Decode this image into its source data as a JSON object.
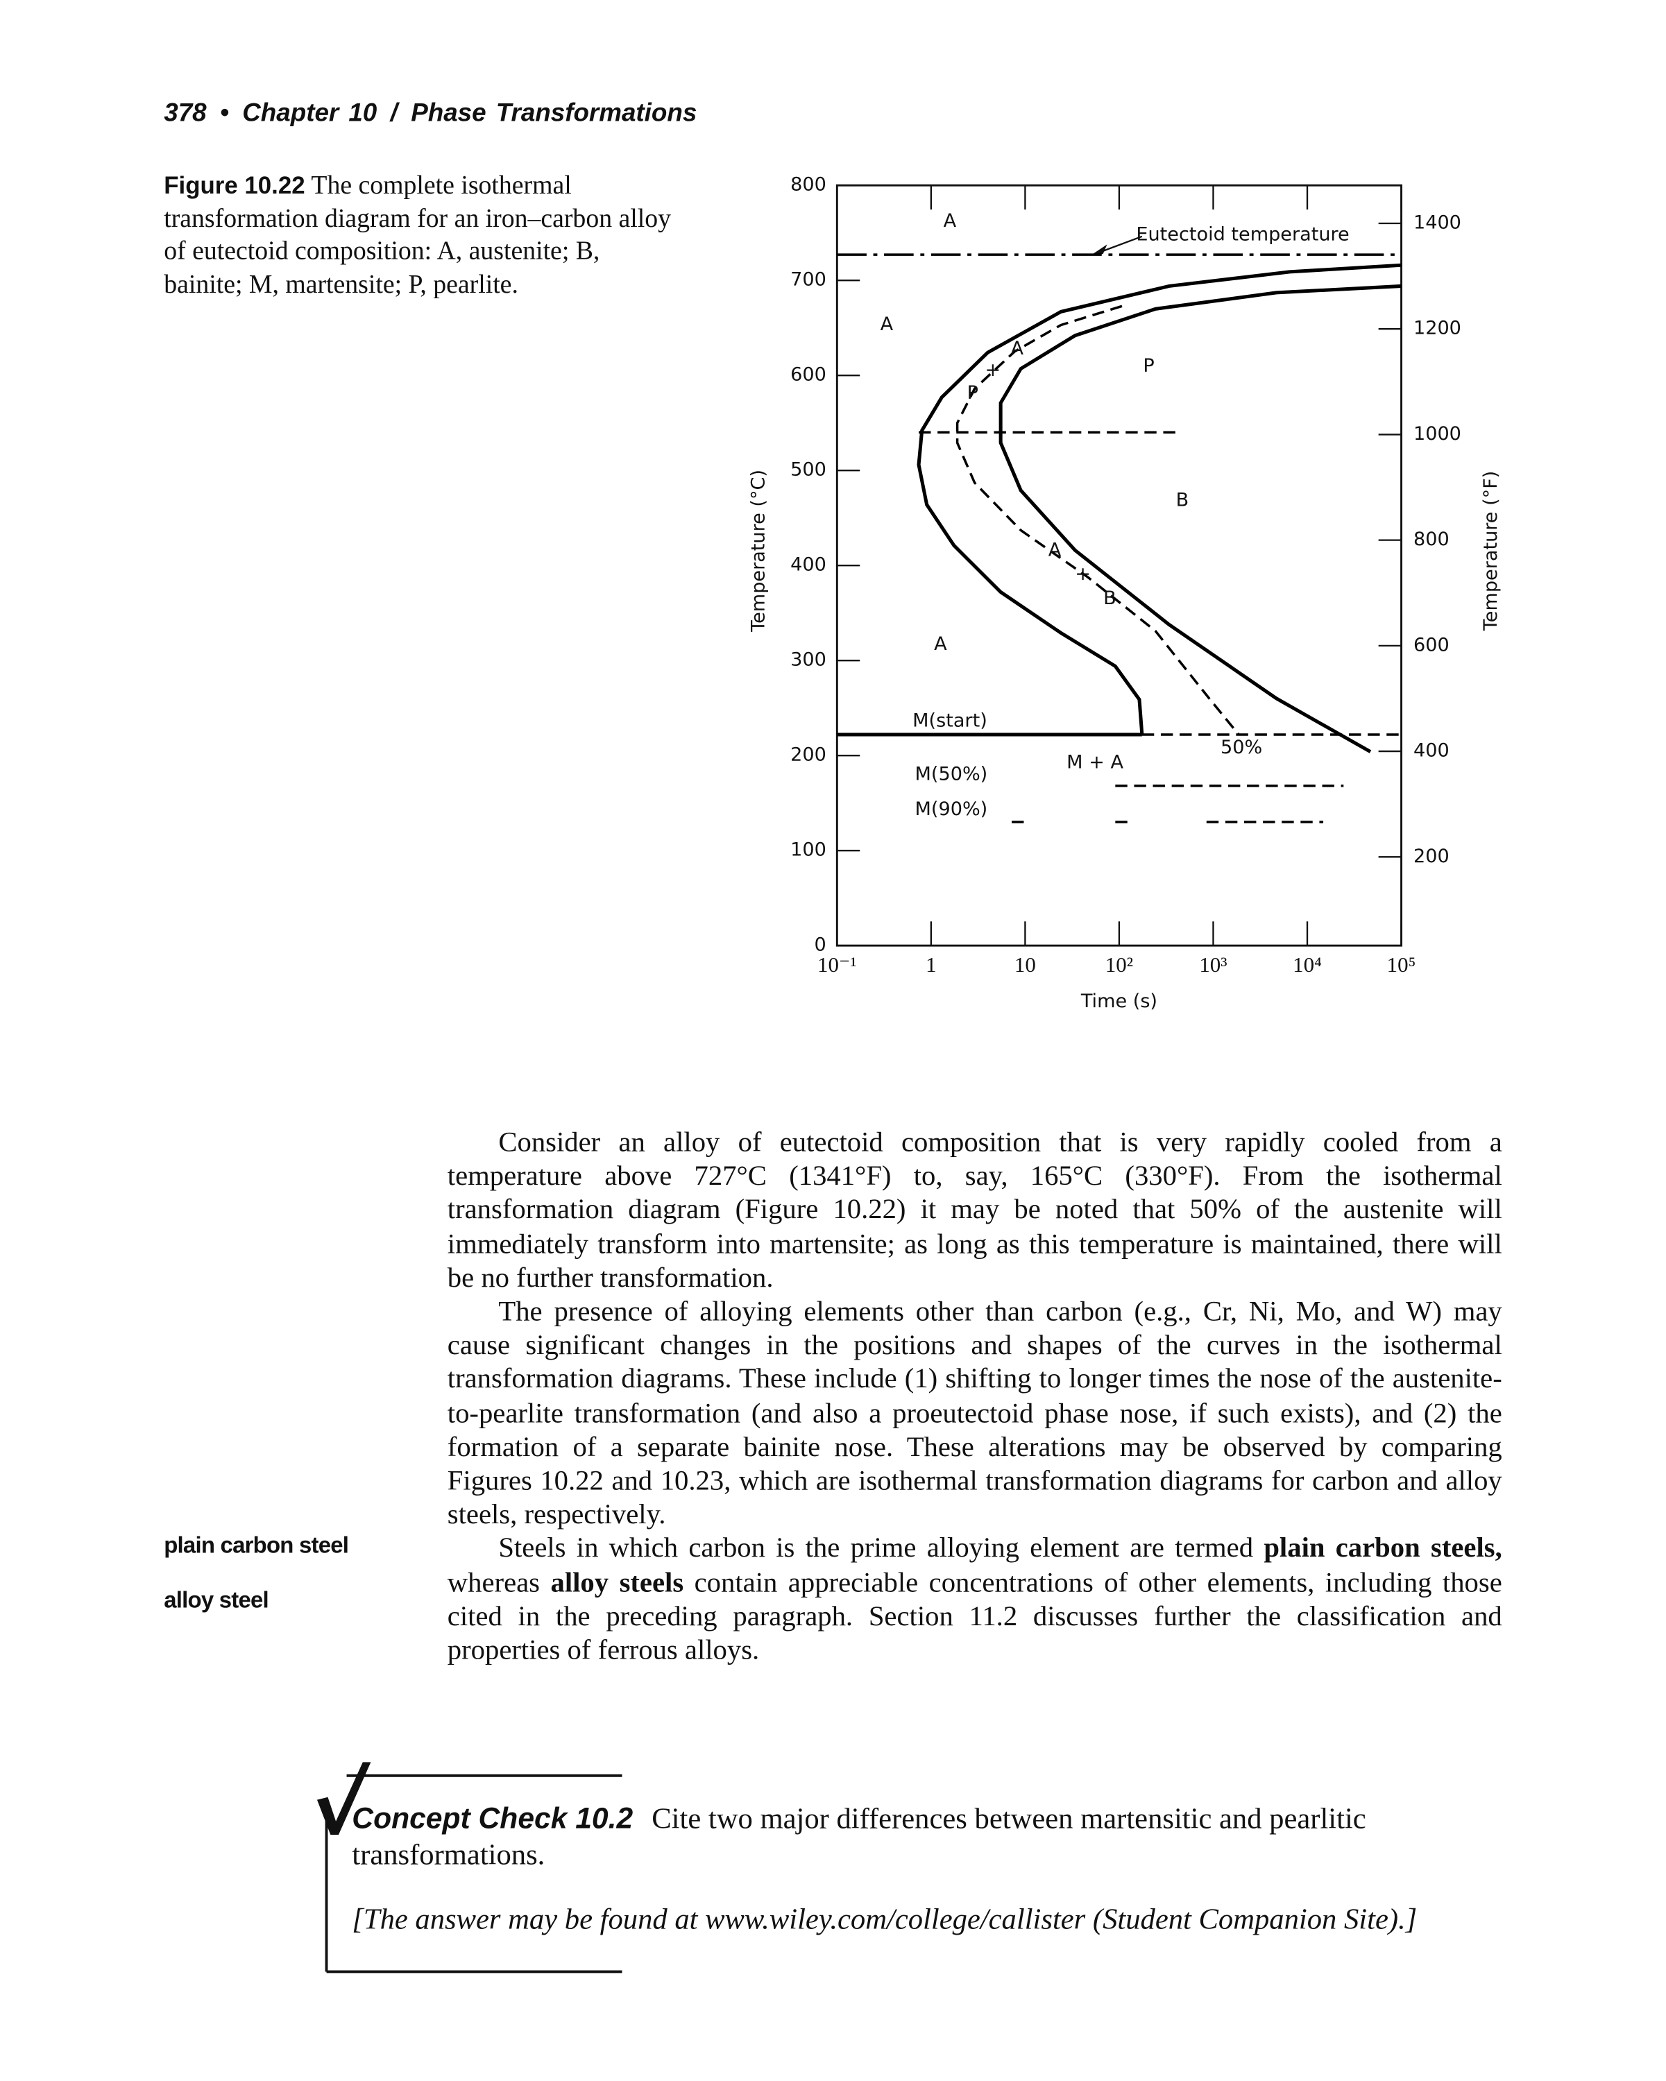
{
  "header": {
    "parts": [
      "378",
      "•",
      "Chapter 10",
      "/",
      "Phase Transformations"
    ]
  },
  "caption": {
    "label": "Figure 10.22",
    "text": "The complete isothermal transformation diagram for an iron–carbon alloy of eutectoid composition: A, austenite; B, bainite; M, martensite; P, pearlite."
  },
  "chart_data": {
    "type": "ttt",
    "x_label": "Time (s)",
    "y_label": "Temperature (°C)",
    "y2_label": "Temperature (°F)",
    "xscale": "log",
    "xlim": [
      0.1,
      100000
    ],
    "xticks": [
      {
        "value": 0.1,
        "label": "10⁻¹"
      },
      1,
      10,
      {
        "value": 100,
        "label": "10²"
      },
      {
        "value": 1000,
        "label": "10³"
      },
      {
        "value": 10000,
        "label": "10⁴"
      },
      {
        "value": 100000,
        "label": "10⁵"
      }
    ],
    "ylim": [
      0,
      800
    ],
    "yticks": [
      0,
      100,
      200,
      300,
      400,
      500,
      600,
      700,
      800
    ],
    "y2lim": [
      32,
      1472
    ],
    "y2ticks": [
      200,
      400,
      600,
      800,
      1000,
      1200,
      1400
    ],
    "series": [
      {
        "style": "solid",
        "color": "#000000",
        "x": [
          100000,
          6500,
          340,
          24,
          4,
          1.3,
          0.8,
          0.74,
          0.9,
          1.75,
          5.5,
          24,
          91,
          164,
          175
        ],
        "values": [
          716,
          709,
          694,
          667,
          624,
          577,
          542,
          506,
          464,
          421,
          372,
          329,
          294,
          259,
          222
        ]
      },
      {
        "style": "dashed",
        "color": "#000000",
        "x": [
          107,
          24,
          7.7,
          2.9,
          1.9,
          1.9,
          2.9,
          9,
          46,
          243,
          906,
          1870
        ],
        "values": [
          673,
          653,
          625,
          586,
          550,
          529,
          487,
          437,
          388,
          331,
          260,
          222
        ]
      },
      {
        "style": "solid",
        "color": "#000000",
        "x": [
          100000,
          4700,
          243,
          34,
          9,
          5.5,
          5.5,
          9,
          34,
          338,
          4700,
          46900
        ],
        "values": [
          694,
          687,
          670,
          642,
          607,
          571,
          529,
          479,
          416,
          338,
          260,
          204
        ]
      },
      {
        "style": "solid",
        "color": "#000000",
        "x": [
          0.1,
          175
        ],
        "values": [
          222,
          222
        ]
      },
      {
        "style": "dashed",
        "color": "#000000",
        "x": [
          175,
          100000
        ],
        "values": [
          222,
          222
        ]
      },
      {
        "style": "dashed",
        "color": "#000000",
        "x": [
          0.74,
          400
        ],
        "values": [
          540,
          540
        ]
      },
      {
        "style": "dashed",
        "color": "#000000",
        "x": [
          91,
          24300
        ],
        "values": [
          168,
          168
        ]
      },
      {
        "style": "dashed",
        "color": "#000000",
        "x": [
          7.2,
          10.7,
          10.7,
          91,
          126,
          126,
          849,
          14800
        ],
        "values": [
          130,
          130,
          null,
          130,
          130,
          null,
          130,
          130
        ]
      },
      {
        "style": "dashdot",
        "color": "#000000",
        "x": [
          0.1,
          100000
        ],
        "values": [
          727,
          727
        ]
      }
    ],
    "annotations": [
      "A",
      "Eutectoid temperature",
      "A",
      "A",
      "+",
      "P",
      "P",
      "B",
      "A",
      "+",
      "B",
      "A",
      "M(start)",
      "M(50%)",
      "M(90%)",
      "M + A",
      "50%"
    ]
  },
  "body": {
    "paragraphs": [
      [
        "Consider an alloy of eutectoid composition that is very rapidly cooled from a temperature above 727°C (1341°F) to, say, 165°C (330°F). From the isothermal transformation diagram (Figure 10.22) it may be noted that 50% of the austenite will immediately transform into martensite; as long as this temperature is maintained, there will be no further transformation."
      ],
      [
        "The presence of alloying elements other than carbon (e.g., Cr, Ni, Mo, and W) may cause significant changes in the positions and shapes of the curves in the isothermal transformation diagrams. These include (1) shifting to longer times the nose of the austenite-to-pearlite transformation (and also a proeutectoid phase nose, if such exists), and (2) the formation of a separate bainite nose. These alterations may be observed by comparing Figures 10.22 and 10.23, which are isothermal transformation diagrams for carbon and alloy steels, respectively."
      ],
      [
        "Steels in which carbon is the prime alloying element are termed ",
        "plain carbon steels,",
        " whereas ",
        "alloy steels",
        " contain appreciable concentrations of other elements, including those cited in the preceding paragraph. Section 11.2 discusses further the classification and properties of ferrous alloys."
      ]
    ],
    "margin_terms": [
      "plain carbon steel",
      "alloy steel"
    ]
  },
  "concept_check": {
    "title": "Concept Check 10.2",
    "question": "Cite two major differences between martensitic and pearlitic transformations.",
    "answer": "[The answer may be found at www.wiley.com/college/callister (Student Companion Site).]"
  }
}
